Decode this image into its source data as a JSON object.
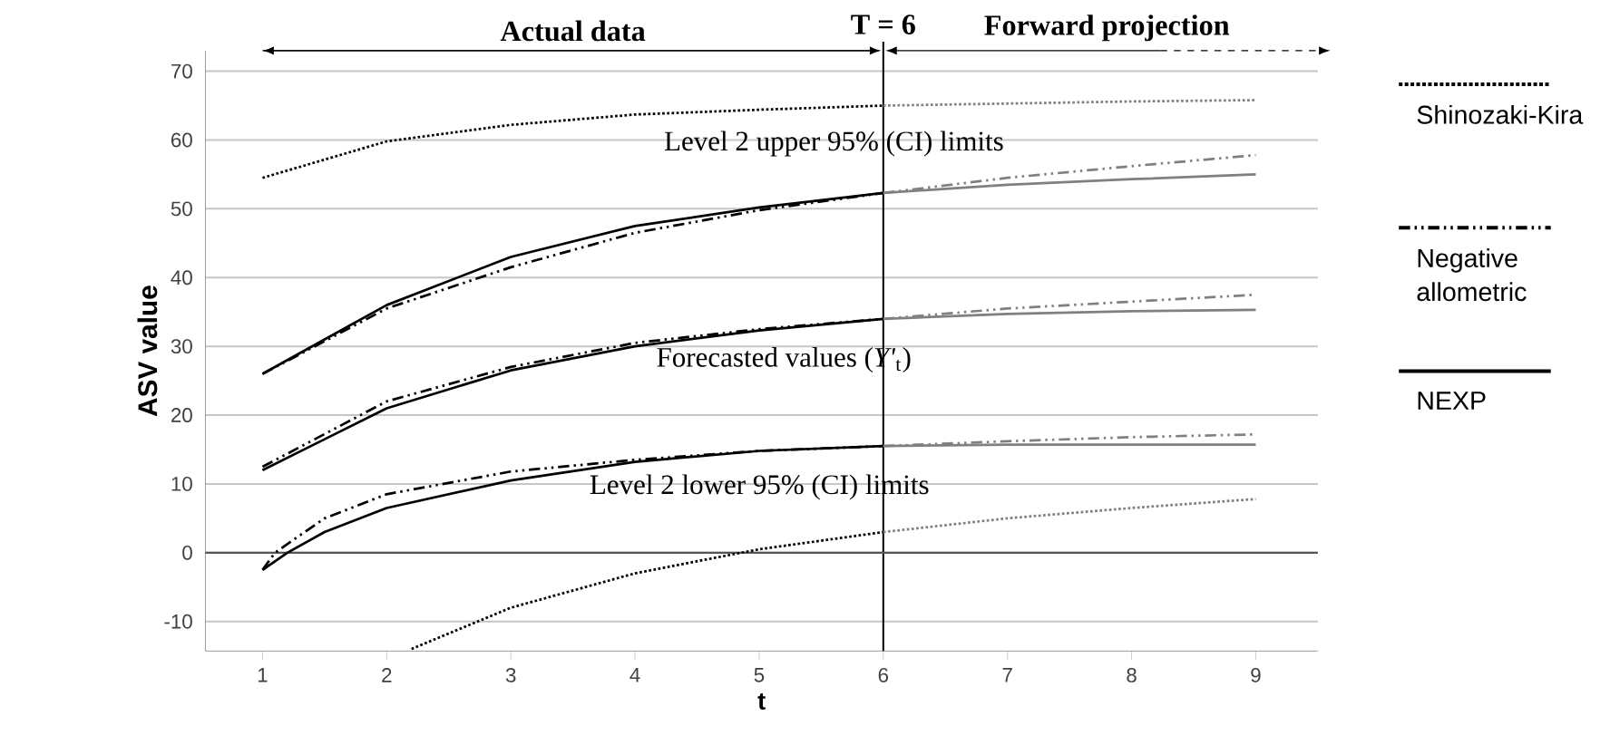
{
  "chart_data": {
    "type": "line",
    "xlabel": "t",
    "ylabel": "ASV value",
    "xlim": [
      0.54,
      9.5
    ],
    "ylim": [
      -14.3,
      73
    ],
    "xticks": [
      1,
      2,
      3,
      4,
      5,
      6,
      7,
      8,
      9
    ],
    "yticks": [
      -10,
      0,
      10,
      20,
      30,
      40,
      50,
      60,
      70
    ],
    "grid": "y",
    "legend": "right",
    "marker": "none",
    "ref_lines": [
      {
        "axis": "x",
        "value": 6,
        "label": "T = 6",
        "color": "#000000"
      },
      {
        "axis": "y",
        "value": 0,
        "color": "#555555"
      }
    ],
    "annotations": [
      "Actual data",
      "Forward projection",
      "Level 2 upper 95% (CI) limits",
      "Forecasted values (*Y'*$_{t}$)",
      "Level 2 lower 95% (CI) limits"
    ],
    "series": [
      {
        "name": "Shinozaki-Kira",
        "color": "#000000",
        "line_style": "dotted",
        "x": [
          1,
          2,
          3,
          4,
          5,
          6
        ],
        "values": [
          54.5,
          59.8,
          62.2,
          63.7,
          64.4,
          65
        ]
      },
      {
        "color": "#808080",
        "line_style": "dotted",
        "x": [
          6,
          7,
          8,
          9
        ],
        "values": [
          65,
          65.3,
          65.6,
          65.8
        ]
      },
      {
        "color": "#000000",
        "line_style": "dotted",
        "x": [
          2.2,
          3,
          4,
          5,
          6
        ],
        "values": [
          -14,
          -8,
          -3,
          0.5,
          3
        ]
      },
      {
        "color": "#808080",
        "line_style": "dotted",
        "x": [
          6,
          7,
          8,
          9
        ],
        "values": [
          3,
          5,
          6.5,
          7.8
        ]
      },
      {
        "name": "Negative allometric",
        "color": "#000000",
        "line_style": "dashdot",
        "x": [
          1,
          2,
          3,
          4,
          5,
          6
        ],
        "values": [
          26,
          35.5,
          41.5,
          46.5,
          49.8,
          52.3
        ]
      },
      {
        "color": "#808080",
        "line_style": "dashdot",
        "x": [
          6,
          7,
          8,
          9
        ],
        "values": [
          52.3,
          54.5,
          56.2,
          57.8
        ]
      },
      {
        "color": "#000000",
        "line_style": "dashdot",
        "x": [
          1,
          2,
          3,
          4,
          5,
          6
        ],
        "values": [
          12.5,
          22,
          27,
          30.5,
          32.5,
          34
        ]
      },
      {
        "color": "#808080",
        "line_style": "dashdot",
        "x": [
          6,
          7,
          8,
          9
        ],
        "values": [
          34,
          35.5,
          36.5,
          37.5
        ]
      },
      {
        "color": "#000000",
        "line_style": "dashdot",
        "x": [
          1,
          1.1,
          1.5,
          2,
          3,
          4,
          5,
          6
        ],
        "values": [
          -2.5,
          0,
          5,
          8.5,
          11.8,
          13.5,
          14.8,
          15.5
        ]
      },
      {
        "color": "#808080",
        "line_style": "dashdot",
        "x": [
          6,
          7,
          8,
          9
        ],
        "values": [
          15.5,
          16.2,
          16.8,
          17.2
        ]
      },
      {
        "name": "NEXP",
        "color": "#000000",
        "line_style": "solid",
        "x": [
          1,
          1.5,
          2,
          3,
          4,
          5,
          6
        ],
        "values": [
          26,
          31,
          36,
          43,
          47.5,
          50.2,
          52.3
        ]
      },
      {
        "color": "#808080",
        "line_style": "solid",
        "x": [
          6,
          7,
          8,
          9
        ],
        "values": [
          52.3,
          53.5,
          54.3,
          55
        ]
      },
      {
        "color": "#000000",
        "line_style": "solid",
        "x": [
          1,
          1.5,
          2,
          3,
          4,
          5,
          6
        ],
        "values": [
          12,
          16.5,
          21,
          26.5,
          30,
          32.3,
          34
        ]
      },
      {
        "color": "#808080",
        "line_style": "solid",
        "x": [
          6,
          7,
          8,
          9
        ],
        "values": [
          34,
          34.7,
          35.1,
          35.3
        ]
      },
      {
        "color": "#000000",
        "line_style": "solid",
        "x": [
          1,
          1.2,
          1.5,
          2,
          3,
          4,
          5,
          6
        ],
        "values": [
          -2.5,
          0,
          3,
          6.5,
          10.5,
          13.2,
          14.8,
          15.5
        ]
      },
      {
        "color": "#808080",
        "line_style": "solid",
        "x": [
          6,
          7,
          8,
          9
        ],
        "values": [
          15.5,
          15.7,
          15.7,
          15.7
        ]
      }
    ]
  }
}
